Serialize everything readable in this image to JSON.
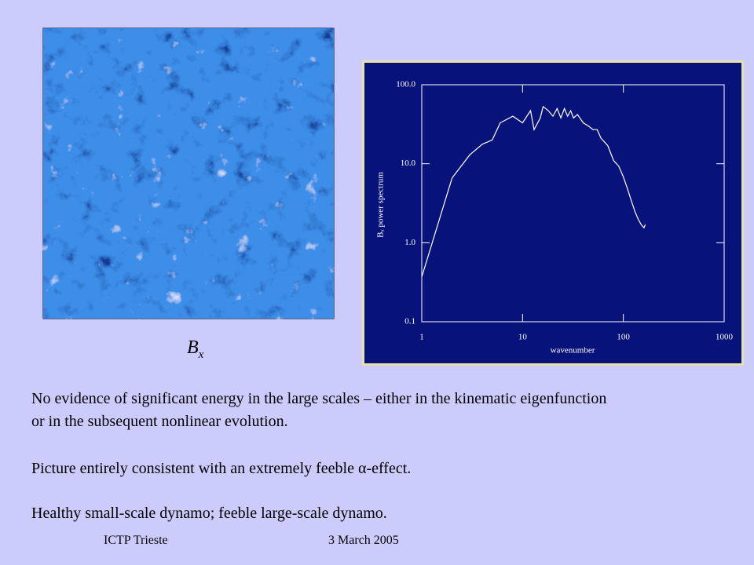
{
  "slide": {
    "image_caption": {
      "base": "B",
      "subscript": "x"
    },
    "paragraphs": [
      [
        "No evidence of significant energy in the large scales – either in the kinematic eigenfunction",
        "or in the subsequent nonlinear evolution."
      ],
      [
        "Picture entirely consistent with an extremely feeble α-effect."
      ],
      [
        "Healthy small-scale dynamo; feeble large-scale dynamo."
      ]
    ],
    "footer": {
      "left": "ICTP Trieste",
      "right": "3 March 2005"
    }
  },
  "chart_data": {
    "type": "line",
    "xlabel": "wavenumber",
    "ylabel": "Bₓ power spectrum",
    "log_x": true,
    "log_y": true,
    "color": "#ffffff",
    "xlim": [
      1,
      1000
    ],
    "ylim": [
      0.1,
      100
    ],
    "xticks": [
      1,
      10,
      100,
      1000
    ],
    "yticks": [
      {
        "value": 0.1,
        "label": "0.1"
      },
      {
        "value": 1,
        "label": "1.0"
      },
      {
        "value": 10,
        "label": "10.0"
      },
      {
        "value": 100,
        "label": "100.0"
      }
    ],
    "x": [
      1,
      2,
      3,
      4,
      5,
      6,
      8,
      10,
      12,
      13,
      15,
      16,
      18,
      20,
      22,
      24,
      26,
      28,
      30,
      32,
      35,
      40,
      45,
      50,
      55,
      60,
      70,
      80,
      90,
      100,
      110,
      120,
      130,
      140,
      150,
      160,
      165
    ],
    "values": [
      0.37,
      6.6,
      13,
      17.7,
      20,
      33,
      40,
      33,
      47,
      27,
      38,
      53,
      47,
      40,
      50,
      38,
      50,
      40,
      47,
      38,
      42,
      33,
      30,
      27,
      27,
      21,
      17,
      11,
      9.3,
      6.8,
      4.8,
      3.4,
      2.5,
      2,
      1.7,
      1.55,
      1.7
    ]
  }
}
